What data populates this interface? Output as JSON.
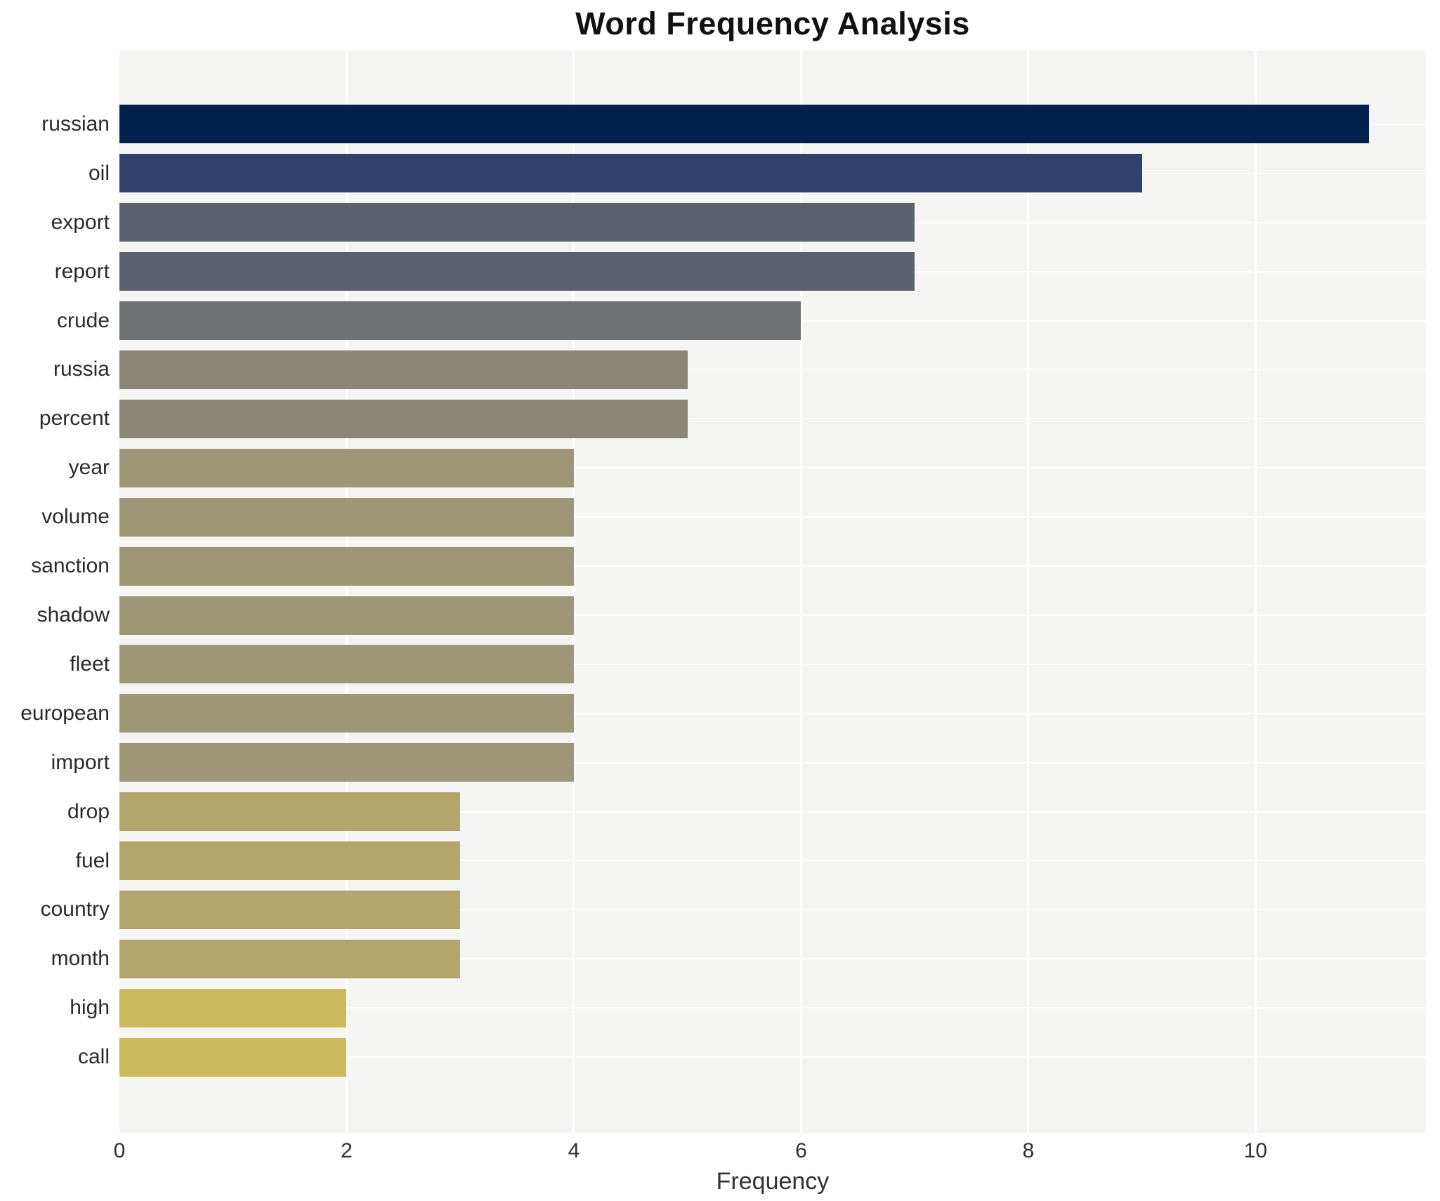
{
  "title": "Word Frequency Analysis",
  "x_axis_label": "Frequency",
  "colors": {
    "page_background": "#ffffff",
    "plot_background": "#f5f5f4",
    "grid": "#ffffff",
    "title_text": "#111111",
    "label_text": "#2b2b2b",
    "tick_text": "#333333"
  },
  "chart_data": {
    "type": "bar",
    "orientation": "horizontal",
    "title": "Word Frequency Analysis",
    "xlabel": "Frequency",
    "ylabel": "",
    "categories": [
      "russian",
      "oil",
      "export",
      "report",
      "crude",
      "russia",
      "percent",
      "year",
      "volume",
      "sanction",
      "shadow",
      "fleet",
      "european",
      "import",
      "drop",
      "fuel",
      "country",
      "month",
      "high",
      "call"
    ],
    "values": [
      11,
      9,
      7,
      7,
      6,
      5,
      5,
      4,
      4,
      4,
      4,
      4,
      4,
      4,
      3,
      3,
      3,
      3,
      2,
      2
    ],
    "bar_colors": [
      "#01224d",
      "#32436b",
      "#5c6170",
      "#5c6170",
      "#6f7173",
      "#898678",
      "#898678",
      "#9d9677",
      "#9d9677",
      "#9d9677",
      "#9d9677",
      "#9d9677",
      "#9d9677",
      "#9d9677",
      "#b2a66c",
      "#b2a66c",
      "#b2a66c",
      "#b2a66c",
      "#ccba5e",
      "#ccba5e"
    ],
    "xlim": [
      0,
      11.5
    ],
    "xticks": [
      0,
      2,
      4,
      6,
      8,
      10
    ],
    "grid": "both",
    "legend": "none"
  }
}
